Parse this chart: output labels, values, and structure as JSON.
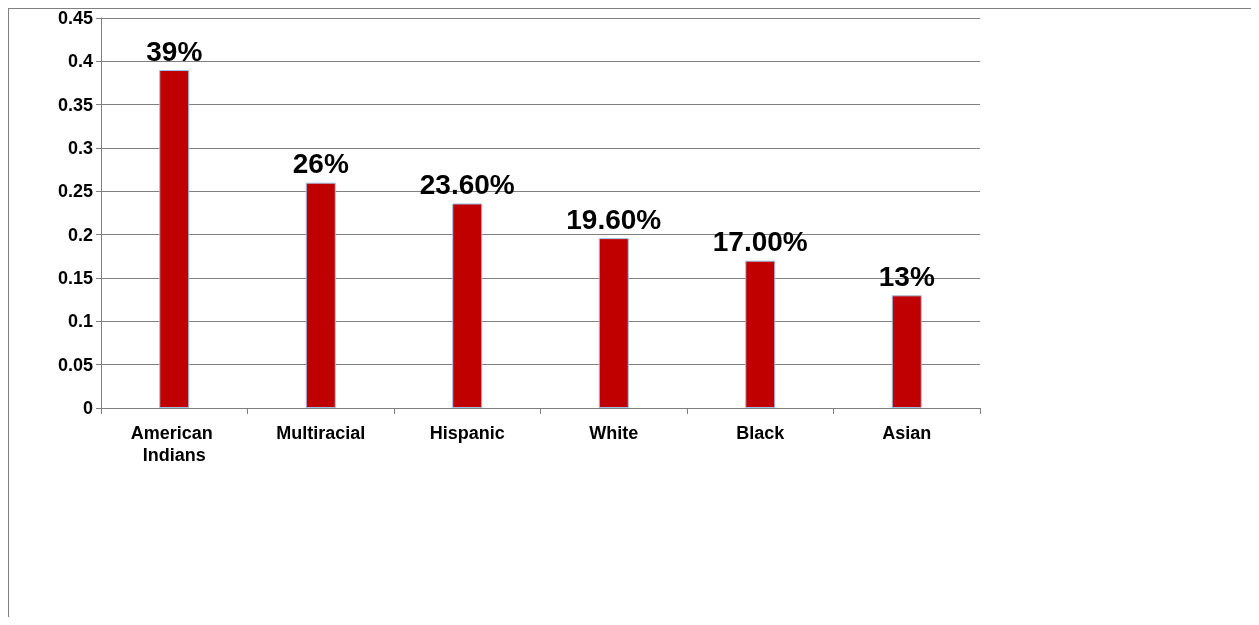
{
  "chart_data": {
    "type": "bar",
    "categories": [
      "American Indians",
      "Multiracial",
      "Hispanic",
      "White",
      "Black",
      "Asian"
    ],
    "values": [
      0.39,
      0.26,
      0.236,
      0.196,
      0.17,
      0.13
    ],
    "value_labels": [
      "39%",
      "26%",
      "23.60%",
      "19.60%",
      "17.00%",
      "13%"
    ],
    "color": "#c00000",
    "ylim": [
      0,
      0.45
    ],
    "yticks": [
      0,
      0.05,
      0.1,
      0.15,
      0.2,
      0.25,
      0.3,
      0.35,
      0.4,
      0.45
    ],
    "grid": "y"
  }
}
